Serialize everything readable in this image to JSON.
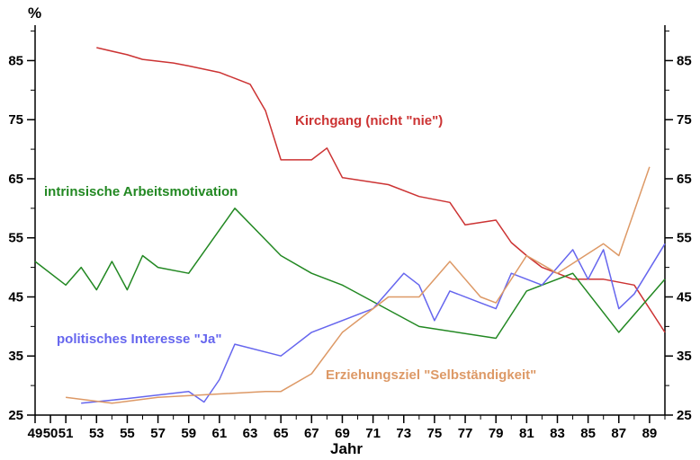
{
  "chart_data": {
    "type": "line",
    "title": "",
    "xlabel": "Jahr",
    "ylabel": "%",
    "ylim": [
      25,
      91
    ],
    "xlim": [
      1949,
      1990
    ],
    "grid": false,
    "x_ticks": [
      1949,
      1950,
      1951,
      1953,
      1955,
      1957,
      1959,
      1961,
      1963,
      1965,
      1967,
      1969,
      1971,
      1973,
      1975,
      1977,
      1979,
      1981,
      1983,
      1985,
      1987,
      1989
    ],
    "x_tick_labels": [
      "49",
      "50",
      "51",
      "53",
      "55",
      "57",
      "59",
      "61",
      "63",
      "65",
      "67",
      "69",
      "71",
      "73",
      "75",
      "77",
      "79",
      "81",
      "83",
      "85",
      "87",
      "89"
    ],
    "y_ticks": [
      25,
      35,
      45,
      55,
      65,
      75,
      85
    ],
    "y_tick_labels": [
      "25",
      "35",
      "45",
      "55",
      "65",
      "75",
      "85"
    ],
    "series": [
      {
        "name": "Kirchgang (nicht \"nie\")",
        "color": "#cc3333",
        "points": [
          [
            1953,
            87.2
          ],
          [
            1955,
            86.0
          ],
          [
            1956,
            85.2
          ],
          [
            1958,
            84.6
          ],
          [
            1959,
            84.1
          ],
          [
            1961,
            83.0
          ],
          [
            1962,
            82.0
          ],
          [
            1963,
            81.0
          ],
          [
            1964,
            76.5
          ],
          [
            1965,
            68.2
          ],
          [
            1967,
            68.2
          ],
          [
            1968,
            70.2
          ],
          [
            1969,
            65.2
          ],
          [
            1972,
            64.0
          ],
          [
            1974,
            62.0
          ],
          [
            1976,
            61.0
          ],
          [
            1977,
            57.2
          ],
          [
            1979,
            58.0
          ],
          [
            1980,
            54.2
          ],
          [
            1981,
            52.0
          ],
          [
            1982,
            50.0
          ],
          [
            1983,
            49.0
          ],
          [
            1984,
            48.0
          ],
          [
            1986,
            48.0
          ],
          [
            1988,
            47.0
          ],
          [
            1990,
            39.0
          ]
        ]
      },
      {
        "name": "intrinsische Arbeitsmotivation",
        "color": "#228822",
        "points": [
          [
            1949,
            51.0
          ],
          [
            1951,
            47.0
          ],
          [
            1952,
            50.0
          ],
          [
            1953,
            46.2
          ],
          [
            1954,
            51.0
          ],
          [
            1955,
            46.2
          ],
          [
            1956,
            52.0
          ],
          [
            1957,
            50.0
          ],
          [
            1959,
            49.0
          ],
          [
            1962,
            60.0
          ],
          [
            1965,
            52.0
          ],
          [
            1967,
            49.0
          ],
          [
            1969,
            47.0
          ],
          [
            1974,
            40.0
          ],
          [
            1979,
            38.0
          ],
          [
            1981,
            46.0
          ],
          [
            1984,
            49.0
          ],
          [
            1987,
            39.0
          ],
          [
            1990,
            48.0
          ]
        ]
      },
      {
        "name": "politisches Interesse \"Ja\"",
        "color": "#6666ee",
        "points": [
          [
            1952,
            27.0
          ],
          [
            1955,
            27.8
          ],
          [
            1959,
            29.0
          ],
          [
            1960,
            27.2
          ],
          [
            1961,
            31.0
          ],
          [
            1962,
            37.0
          ],
          [
            1965,
            35.0
          ],
          [
            1967,
            39.0
          ],
          [
            1971,
            43.0
          ],
          [
            1973,
            49.0
          ],
          [
            1974,
            47.0
          ],
          [
            1975,
            41.0
          ],
          [
            1976,
            46.0
          ],
          [
            1978,
            44.0
          ],
          [
            1979,
            43.0
          ],
          [
            1980,
            49.0
          ],
          [
            1982,
            47.0
          ],
          [
            1984,
            53.0
          ],
          [
            1985,
            48.0
          ],
          [
            1986,
            53.0
          ],
          [
            1987,
            43.0
          ],
          [
            1988,
            45.5
          ],
          [
            1990,
            54.0
          ]
        ]
      },
      {
        "name": "Erziehungsziel \"Selbständigkeit\"",
        "color": "#dd9966",
        "points": [
          [
            1951,
            28.0
          ],
          [
            1954,
            27.0
          ],
          [
            1957,
            28.0
          ],
          [
            1964,
            29.0
          ],
          [
            1965,
            29.0
          ],
          [
            1967,
            32.0
          ],
          [
            1969,
            39.0
          ],
          [
            1971,
            43.0
          ],
          [
            1972,
            45.0
          ],
          [
            1974,
            45.0
          ],
          [
            1976,
            51.0
          ],
          [
            1978,
            45.0
          ],
          [
            1979,
            44.0
          ],
          [
            1981,
            52.0
          ],
          [
            1983,
            49.0
          ],
          [
            1986,
            54.0
          ],
          [
            1987,
            52.0
          ],
          [
            1989,
            67.0
          ]
        ]
      }
    ]
  }
}
